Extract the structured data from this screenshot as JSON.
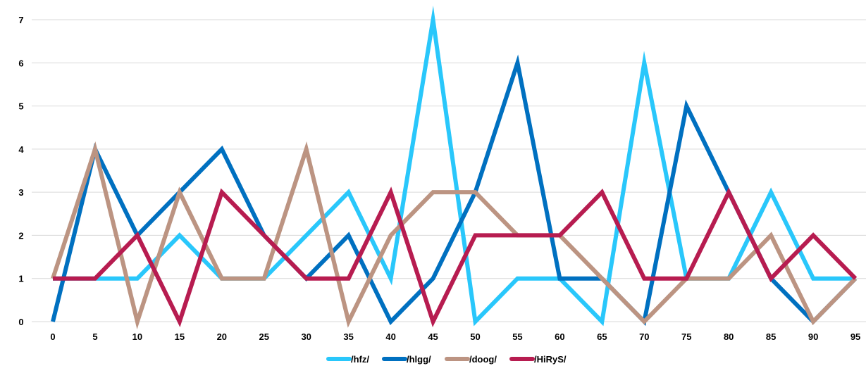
{
  "chart_data": {
    "type": "line",
    "title": "",
    "xlabel": "",
    "ylabel": "",
    "x": [
      0,
      5,
      10,
      15,
      20,
      25,
      30,
      35,
      40,
      45,
      50,
      55,
      60,
      65,
      70,
      75,
      80,
      85,
      90,
      95
    ],
    "x_tick_labels": [
      "0",
      "5",
      "10",
      "15",
      "20",
      "25",
      "30",
      "35",
      "40",
      "45",
      "50",
      "55",
      "60",
      "65",
      "70",
      "75",
      "80",
      "85",
      "90",
      "95"
    ],
    "y_tick_labels": [
      "0",
      "1",
      "2",
      "3",
      "4",
      "5",
      "6",
      "7"
    ],
    "ylim": [
      0,
      7
    ],
    "grid": true,
    "legend_position": "bottom",
    "series": [
      {
        "name": "/hfz/",
        "color": "#29c7fb",
        "values": [
          1,
          1,
          1,
          2,
          1,
          1,
          2,
          3,
          1,
          7,
          0,
          1,
          1,
          0,
          6,
          1,
          1,
          3,
          1,
          1
        ]
      },
      {
        "name": "/hlgg/",
        "color": "#0070c0",
        "values": [
          0,
          4,
          2,
          3,
          4,
          2,
          1,
          2,
          0,
          1,
          3,
          6,
          1,
          1,
          0,
          5,
          3,
          1,
          0,
          1
        ]
      },
      {
        "name": "/doog/",
        "color": "#bc9482",
        "values": [
          1,
          4,
          0,
          3,
          1,
          1,
          4,
          0,
          2,
          3,
          3,
          2,
          2,
          1,
          0,
          1,
          1,
          2,
          0,
          1
        ]
      },
      {
        "name": "/HiRyS/",
        "color": "#b71c50",
        "values": [
          1,
          1,
          2,
          0,
          3,
          2,
          1,
          1,
          3,
          0,
          2,
          2,
          2,
          3,
          1,
          1,
          3,
          1,
          2,
          1
        ]
      }
    ]
  }
}
